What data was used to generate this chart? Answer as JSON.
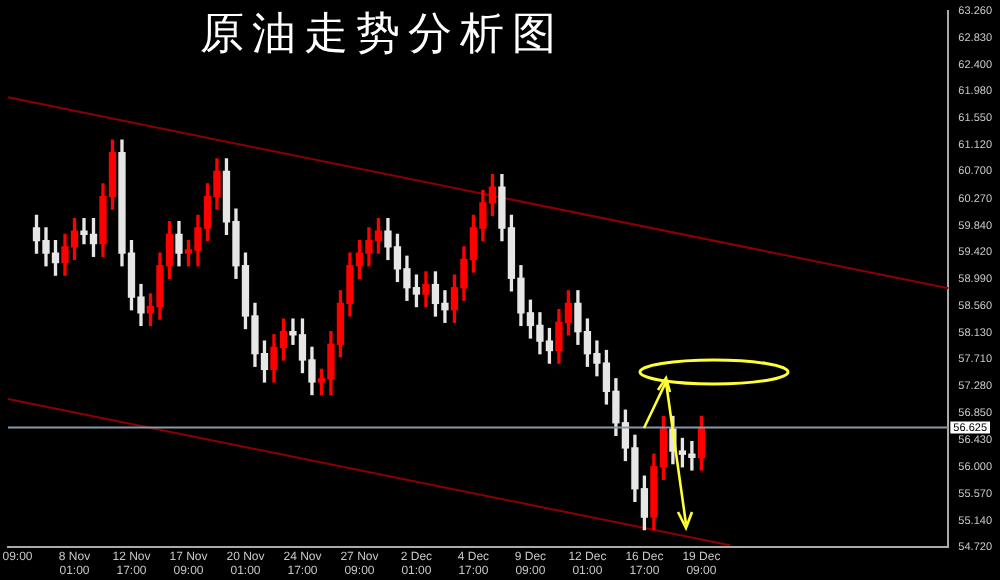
{
  "chart_data": {
    "type": "candlestick",
    "title": "原油走势分析图",
    "categories": [
      null,
      "09:00",
      null,
      null,
      null,
      null,
      null,
      "8 Nov 01:00",
      null,
      null,
      null,
      null,
      null,
      "12 Nov 17:00",
      null,
      null,
      null,
      null,
      null,
      "17 Nov 09:00",
      null,
      null,
      null,
      null,
      null,
      "20 Nov 01:00",
      null,
      null,
      null,
      null,
      null,
      "24 Nov 17:00",
      null,
      null,
      null,
      null,
      null,
      "27 Nov 09:00",
      null,
      null,
      null,
      null,
      null,
      "2 Dec 01:00",
      null,
      null,
      null,
      null,
      null,
      "4 Dec 17:00",
      null,
      null,
      null,
      null,
      null,
      "9 Dec 09:00",
      null,
      null,
      null,
      null,
      null,
      "12 Dec 01:00",
      null,
      null,
      null,
      null,
      null,
      "16 Dec 17:00",
      null,
      null,
      null,
      null,
      null,
      "19 Dec 09:00",
      null,
      null,
      null,
      null,
      null,
      null,
      null,
      null,
      null,
      null,
      null,
      null,
      null,
      null,
      null,
      null,
      null,
      null,
      null,
      null,
      null,
      null,
      null,
      null,
      null,
      null
    ],
    "ohlc": [
      null,
      null,
      null,
      [
        59.8,
        60.0,
        59.4,
        59.6
      ],
      [
        59.6,
        59.8,
        59.2,
        59.4
      ],
      [
        59.4,
        59.6,
        59.05,
        59.25
      ],
      [
        59.25,
        59.7,
        59.05,
        59.5
      ],
      [
        59.5,
        59.95,
        59.3,
        59.75
      ],
      [
        59.75,
        59.95,
        59.55,
        59.7
      ],
      [
        59.7,
        59.95,
        59.35,
        59.55
      ],
      [
        59.55,
        60.5,
        59.35,
        60.3
      ],
      [
        60.3,
        61.2,
        60.1,
        61.0
      ],
      [
        61.0,
        61.2,
        59.2,
        59.4
      ],
      [
        59.4,
        59.6,
        58.5,
        58.7
      ],
      [
        58.7,
        58.9,
        58.25,
        58.45
      ],
      [
        58.45,
        58.75,
        58.25,
        58.55
      ],
      [
        58.55,
        59.4,
        58.35,
        59.2
      ],
      [
        59.2,
        59.9,
        59.0,
        59.7
      ],
      [
        59.7,
        59.9,
        59.2,
        59.4
      ],
      [
        59.4,
        59.6,
        59.2,
        59.45
      ],
      [
        59.45,
        60.0,
        59.2,
        59.8
      ],
      [
        59.8,
        60.5,
        59.6,
        60.3
      ],
      [
        60.3,
        60.9,
        60.1,
        60.7
      ],
      [
        60.7,
        60.9,
        59.7,
        59.9
      ],
      [
        59.9,
        60.1,
        59.0,
        59.2
      ],
      [
        59.2,
        59.4,
        58.2,
        58.4
      ],
      [
        58.4,
        58.6,
        57.6,
        57.8
      ],
      [
        57.8,
        58.0,
        57.35,
        57.55
      ],
      [
        57.55,
        58.1,
        57.35,
        57.9
      ],
      [
        57.9,
        58.35,
        57.7,
        58.15
      ],
      [
        58.15,
        58.35,
        57.95,
        58.1
      ],
      [
        58.1,
        58.35,
        57.5,
        57.7
      ],
      [
        57.7,
        57.9,
        57.15,
        57.35
      ],
      [
        57.35,
        57.55,
        57.15,
        57.4
      ],
      [
        57.4,
        58.15,
        57.15,
        57.95
      ],
      [
        57.95,
        58.8,
        57.75,
        58.6
      ],
      [
        58.6,
        59.4,
        58.4,
        59.2
      ],
      [
        59.2,
        59.6,
        59.0,
        59.4
      ],
      [
        59.4,
        59.8,
        59.2,
        59.6
      ],
      [
        59.6,
        59.95,
        59.4,
        59.75
      ],
      [
        59.75,
        59.95,
        59.3,
        59.5
      ],
      [
        59.5,
        59.7,
        58.95,
        59.15
      ],
      [
        59.15,
        59.35,
        58.65,
        58.85
      ],
      [
        58.85,
        59.05,
        58.55,
        58.75
      ],
      [
        58.75,
        59.1,
        58.55,
        58.9
      ],
      [
        58.9,
        59.1,
        58.4,
        58.6
      ],
      [
        58.6,
        58.8,
        58.3,
        58.5
      ],
      [
        58.5,
        59.05,
        58.3,
        58.85
      ],
      [
        58.85,
        59.5,
        58.65,
        59.3
      ],
      [
        59.3,
        60.0,
        59.1,
        59.8
      ],
      [
        59.8,
        60.4,
        59.6,
        60.2
      ],
      [
        60.2,
        60.65,
        60.0,
        60.45
      ],
      [
        60.45,
        60.65,
        59.6,
        59.8
      ],
      [
        59.8,
        60.0,
        58.8,
        59.0
      ],
      [
        59.0,
        59.2,
        58.25,
        58.45
      ],
      [
        58.45,
        58.65,
        58.05,
        58.25
      ],
      [
        58.25,
        58.45,
        57.8,
        58.0
      ],
      [
        58.0,
        58.2,
        57.65,
        57.85
      ],
      [
        57.85,
        58.5,
        57.65,
        58.3
      ],
      [
        58.3,
        58.8,
        58.1,
        58.6
      ],
      [
        58.6,
        58.8,
        57.95,
        58.15
      ],
      [
        58.15,
        58.35,
        57.6,
        57.8
      ],
      [
        57.8,
        58.0,
        57.45,
        57.65
      ],
      [
        57.65,
        57.85,
        57.0,
        57.2
      ],
      [
        57.2,
        57.4,
        56.5,
        56.7
      ],
      [
        56.7,
        56.9,
        56.1,
        56.3
      ],
      [
        56.3,
        56.5,
        55.45,
        55.65
      ],
      [
        55.65,
        55.85,
        55.0,
        55.2
      ],
      [
        55.2,
        56.2,
        55.0,
        56.0
      ],
      [
        56.0,
        56.8,
        55.8,
        56.6
      ],
      [
        56.6,
        56.8,
        56.05,
        56.25
      ],
      [
        56.25,
        56.45,
        56.0,
        56.2
      ],
      [
        56.2,
        56.4,
        55.95,
        56.15
      ],
      [
        56.15,
        56.8,
        55.95,
        56.62
      ],
      null,
      null,
      null,
      null,
      null,
      null,
      null,
      null,
      null,
      null,
      null,
      null,
      null,
      null,
      null,
      null,
      null,
      null,
      null,
      null,
      null,
      null,
      null,
      null,
      null,
      null
    ],
    "colors": [
      null,
      null,
      null,
      "#e6e6e6",
      "#e6e6e6",
      "#e6e6e6",
      "#ff0000",
      "#ff0000",
      "#e6e6e6",
      "#e6e6e6",
      "#ff0000",
      "#ff0000",
      "#e6e6e6",
      "#e6e6e6",
      "#e6e6e6",
      "#ff0000",
      "#ff0000",
      "#ff0000",
      "#e6e6e6",
      "#ff0000",
      "#ff0000",
      "#ff0000",
      "#ff0000",
      "#e6e6e6",
      "#e6e6e6",
      "#e6e6e6",
      "#e6e6e6",
      "#e6e6e6",
      "#ff0000",
      "#ff0000",
      "#e6e6e6",
      "#e6e6e6",
      "#e6e6e6",
      "#ff0000",
      "#ff0000",
      "#ff0000",
      "#ff0000",
      "#ff0000",
      "#ff0000",
      "#ff0000",
      "#e6e6e6",
      "#e6e6e6",
      "#e6e6e6",
      "#e6e6e6",
      "#ff0000",
      "#e6e6e6",
      "#e6e6e6",
      "#ff0000",
      "#ff0000",
      "#ff0000",
      "#ff0000",
      "#ff0000",
      "#e6e6e6",
      "#e6e6e6",
      "#e6e6e6",
      "#e6e6e6",
      "#e6e6e6",
      "#e6e6e6",
      "#ff0000",
      "#ff0000",
      "#e6e6e6",
      "#e6e6e6",
      "#e6e6e6",
      "#e6e6e6",
      "#e6e6e6",
      "#e6e6e6",
      "#e6e6e6",
      "#e6e6e6",
      "#ff0000",
      "#ff0000",
      "#e6e6e6",
      "#e6e6e6",
      "#e6e6e6",
      "#ff0000",
      null,
      null,
      null,
      null,
      null,
      null,
      null,
      null,
      null,
      null,
      null,
      null,
      null,
      null,
      null,
      null,
      null,
      null,
      null,
      null,
      null,
      null,
      null,
      null,
      null,
      null
    ],
    "series": [
      {
        "type": "line",
        "color": "#8b0000",
        "values": [
          61.88,
          null,
          null,
          null,
          null,
          null,
          null,
          null,
          null,
          null,
          null,
          null,
          null,
          null,
          null,
          null,
          null,
          null,
          null,
          null,
          null,
          null,
          null,
          null,
          null,
          null,
          null,
          null,
          null,
          null,
          null,
          null,
          null,
          null,
          null,
          null,
          null,
          null,
          null,
          null,
          null,
          null,
          null,
          null,
          null,
          null,
          null,
          null,
          null,
          null,
          null,
          null,
          null,
          null,
          null,
          null,
          null,
          null,
          null,
          null,
          null,
          null,
          null,
          null,
          null,
          null,
          null,
          null,
          null,
          null,
          null,
          null,
          null,
          null,
          null,
          null,
          null,
          null,
          null,
          null,
          null,
          null,
          null,
          null,
          null,
          null,
          null,
          null,
          null,
          null,
          null,
          null,
          null,
          null,
          null,
          null,
          null,
          null,
          null,
          58.84
        ]
      },
      {
        "type": "line",
        "color": "#8b0000",
        "values": [
          57.08,
          null,
          null,
          null,
          null,
          null,
          null,
          null,
          null,
          null,
          null,
          null,
          null,
          null,
          null,
          null,
          null,
          null,
          null,
          null,
          null,
          null,
          null,
          null,
          null,
          null,
          null,
          null,
          null,
          null,
          null,
          null,
          null,
          null,
          null,
          null,
          null,
          null,
          null,
          null,
          null,
          null,
          null,
          null,
          null,
          null,
          null,
          null,
          null,
          null,
          null,
          null,
          null,
          null,
          null,
          null,
          null,
          null,
          null,
          null,
          null,
          null,
          null,
          null,
          null,
          null,
          null,
          null,
          null,
          null,
          null,
          null,
          null,
          null,
          null,
          null,
          54.75,
          null,
          null,
          null,
          null,
          null,
          null,
          null,
          null,
          null,
          null,
          null,
          null,
          null,
          null,
          null,
          null,
          null,
          null,
          null,
          null,
          null,
          null,
          null
        ]
      }
    ],
    "ylim": [
      54.72,
      63.26
    ],
    "yticks": [
      {
        "value": 63.26,
        "label": "63.260"
      },
      {
        "value": 62.83,
        "label": "62.830"
      },
      {
        "value": 62.4,
        "label": "62.400"
      },
      {
        "value": 61.98,
        "label": "61.980"
      },
      {
        "value": 61.55,
        "label": "61.550"
      },
      {
        "value": 61.12,
        "label": "61.120"
      },
      {
        "value": 60.7,
        "label": "60.700"
      },
      {
        "value": 60.27,
        "label": "60.270"
      },
      {
        "value": 59.84,
        "label": "59.840"
      },
      {
        "value": 59.42,
        "label": "59.420"
      },
      {
        "value": 58.99,
        "label": "58.990"
      },
      {
        "value": 58.56,
        "label": "58.560"
      },
      {
        "value": 58.13,
        "label": "58.130"
      },
      {
        "value": 57.71,
        "label": "57.710"
      },
      {
        "value": 57.28,
        "label": "57.280"
      },
      {
        "value": 56.85,
        "label": "56.850"
      },
      {
        "value": 56.43,
        "label": "56.430"
      },
      {
        "value": 56.0,
        "label": "56.000"
      },
      {
        "value": 55.57,
        "label": "55.570"
      },
      {
        "value": 55.14,
        "label": "55.140"
      },
      {
        "value": 54.72,
        "label": "54.720"
      }
    ],
    "ref_lines": [
      {
        "axis": "y",
        "value": 56.625,
        "label": "56.625",
        "color": "#8899aa"
      }
    ]
  }
}
